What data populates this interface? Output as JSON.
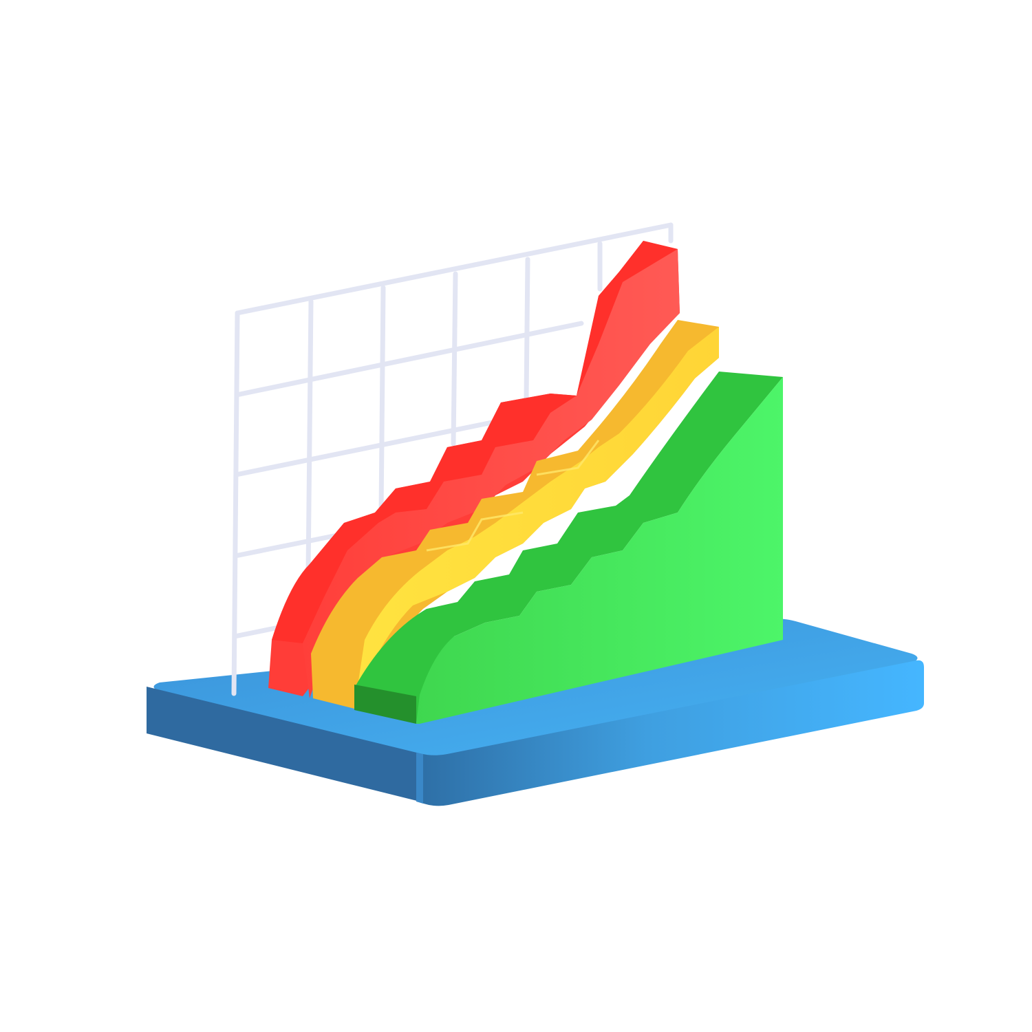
{
  "illustration": {
    "subject": "3d-stepped-area-chart-icon",
    "colors": {
      "background": "#ffffff",
      "base_top": "#3fa7e6",
      "base_front": "#3aa0e8",
      "base_side": "#2f6fa8",
      "grid_line": "#dfe3f2",
      "red": "#ff4a44",
      "red_shade": "#e8302c",
      "yellow": "#ffd43a",
      "yellow_shade": "#f5b62e",
      "green": "#49ee63",
      "green_shade": "#2fbf3c"
    },
    "layers": [
      "red",
      "yellow",
      "green"
    ],
    "grid": {
      "columns": 6,
      "rows": 5
    }
  }
}
